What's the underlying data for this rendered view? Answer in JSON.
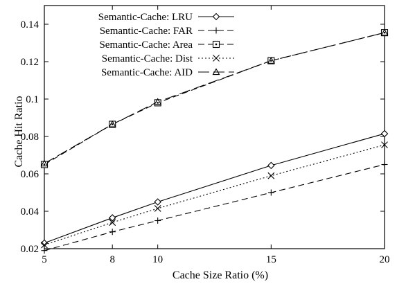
{
  "chart_data": {
    "type": "line",
    "title": "",
    "xlabel": "Cache Size Ratio (%)",
    "ylabel": "Cache Hit Ratio",
    "x": [
      5,
      8,
      10,
      15,
      20
    ],
    "xlim": [
      5,
      20
    ],
    "ylim": [
      0.02,
      0.15
    ],
    "xticks": [
      5,
      8,
      10,
      15,
      20
    ],
    "yticks": [
      0.02,
      0.04,
      0.06,
      0.08,
      0.1,
      0.12,
      0.14
    ],
    "ytick_labels": [
      "0.02",
      "0.04",
      "0.06",
      "0.08",
      "0.1",
      "0.12",
      "0.14"
    ],
    "grid": false,
    "legend_position": "top-left",
    "series": [
      {
        "name": "Semantic-Cache: LRU",
        "marker": "diamond",
        "dash": "solid",
        "values": [
          0.023,
          0.0365,
          0.045,
          0.0645,
          0.0815
        ]
      },
      {
        "name": "Semantic-Cache: FAR",
        "marker": "plus",
        "dash": "dashed",
        "values": [
          0.019,
          0.029,
          0.035,
          0.05,
          0.065
        ]
      },
      {
        "name": "Semantic-Cache: Area",
        "marker": "square-dot",
        "dash": "dashed",
        "values": [
          0.065,
          0.0865,
          0.098,
          0.1205,
          0.1355
        ]
      },
      {
        "name": "Semantic-Cache: Dist",
        "marker": "cross",
        "dash": "dotted",
        "values": [
          0.022,
          0.034,
          0.0415,
          0.059,
          0.0755
        ]
      },
      {
        "name": "Semantic-Cache: AID",
        "marker": "triangle",
        "dash": "longdash",
        "values": [
          0.0655,
          0.0865,
          0.0985,
          0.1205,
          0.1355
        ]
      }
    ]
  }
}
